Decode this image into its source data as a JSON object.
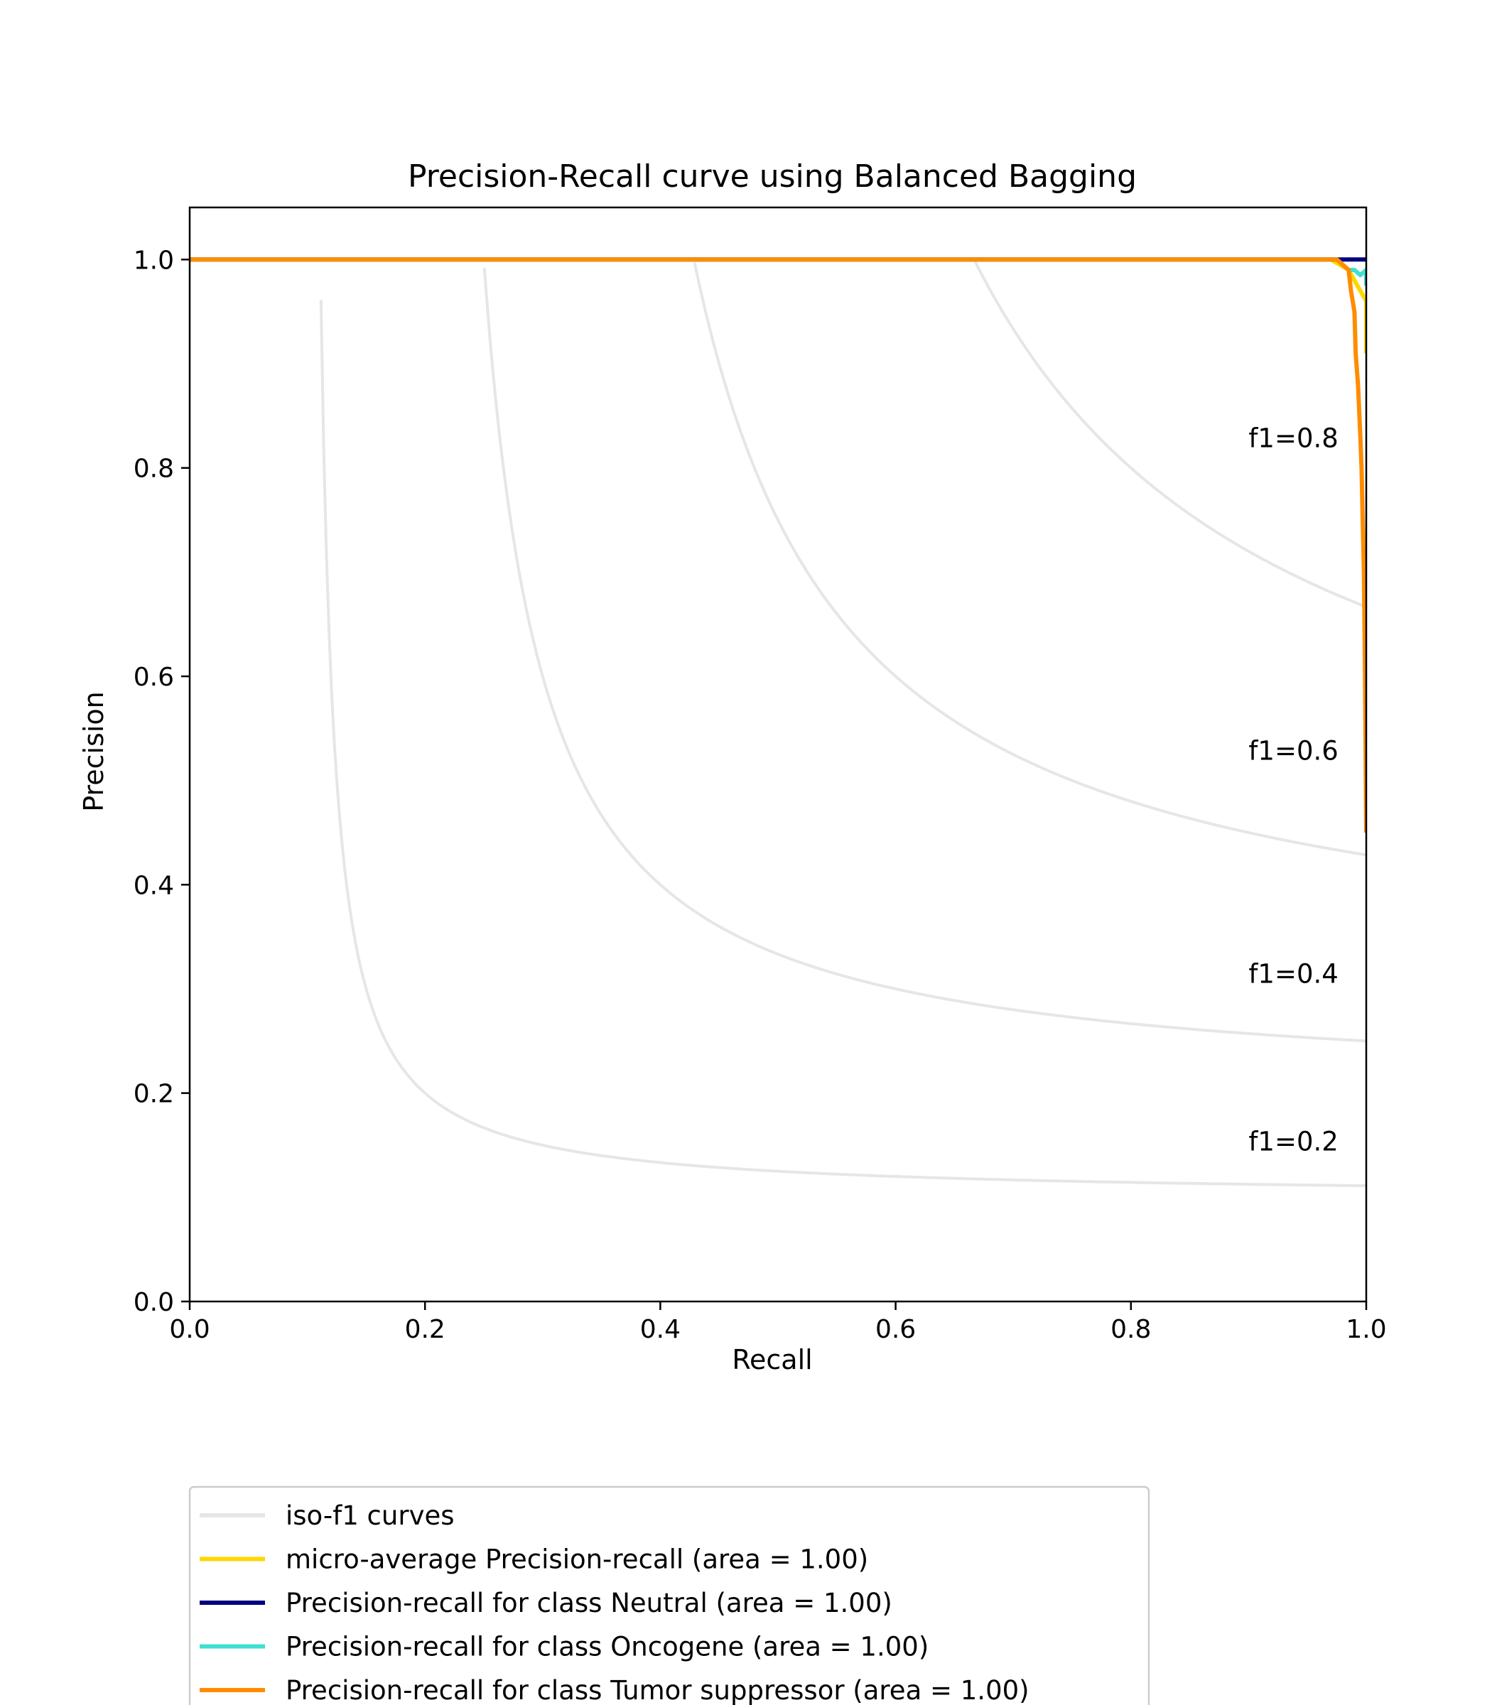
{
  "chart_data": {
    "type": "line",
    "title": "Precision-Recall curve using Balanced Bagging",
    "xlabel": "Recall",
    "ylabel": "Precision",
    "xlim": [
      0.0,
      1.0
    ],
    "ylim": [
      0.0,
      1.05
    ],
    "xticks": [
      "0.0",
      "0.2",
      "0.4",
      "0.6",
      "0.8",
      "1.0"
    ],
    "yticks": [
      "0.0",
      "0.2",
      "0.4",
      "0.6",
      "0.8",
      "1.0"
    ],
    "grid": false,
    "legend_placement": "below-left",
    "iso_f1": {
      "legend_label": "iso-f1 curves",
      "color": "#e6e6e6",
      "levels": [
        0.2,
        0.4,
        0.6,
        0.8
      ],
      "labels": [
        "f1=0.2",
        "f1=0.4",
        "f1=0.6",
        "f1=0.8"
      ]
    },
    "series": [
      {
        "name": "micro-average Precision-recall (area = 1.00)",
        "color": "#ffd700",
        "x": [
          0.0,
          0.97,
          0.985,
          0.99,
          0.995,
          1.0,
          1.0
        ],
        "y": [
          1.0,
          1.0,
          0.99,
          0.98,
          0.97,
          0.96,
          0.91
        ]
      },
      {
        "name": "Precision-recall for class Neutral (area = 1.00)",
        "color": "#000080",
        "x": [
          0.0,
          1.0
        ],
        "y": [
          1.0,
          1.0
        ]
      },
      {
        "name": "Precision-recall for class Oncogene (area = 1.00)",
        "color": "#40e0d0",
        "x": [
          0.0,
          0.975,
          0.985,
          0.99,
          0.995,
          1.0,
          1.0
        ],
        "y": [
          1.0,
          1.0,
          0.99,
          0.99,
          0.985,
          0.99,
          0.975
        ]
      },
      {
        "name": "Precision-recall for class Tumor suppressor (area = 1.00)",
        "color": "#ff8c00",
        "x": [
          0.0,
          0.975,
          0.985,
          0.987,
          0.99,
          0.991,
          0.993,
          0.995,
          0.996,
          0.997,
          0.998,
          0.999,
          1.0
        ],
        "y": [
          1.0,
          1.0,
          0.99,
          0.97,
          0.95,
          0.91,
          0.88,
          0.83,
          0.8,
          0.75,
          0.7,
          0.6,
          0.45
        ]
      }
    ]
  }
}
